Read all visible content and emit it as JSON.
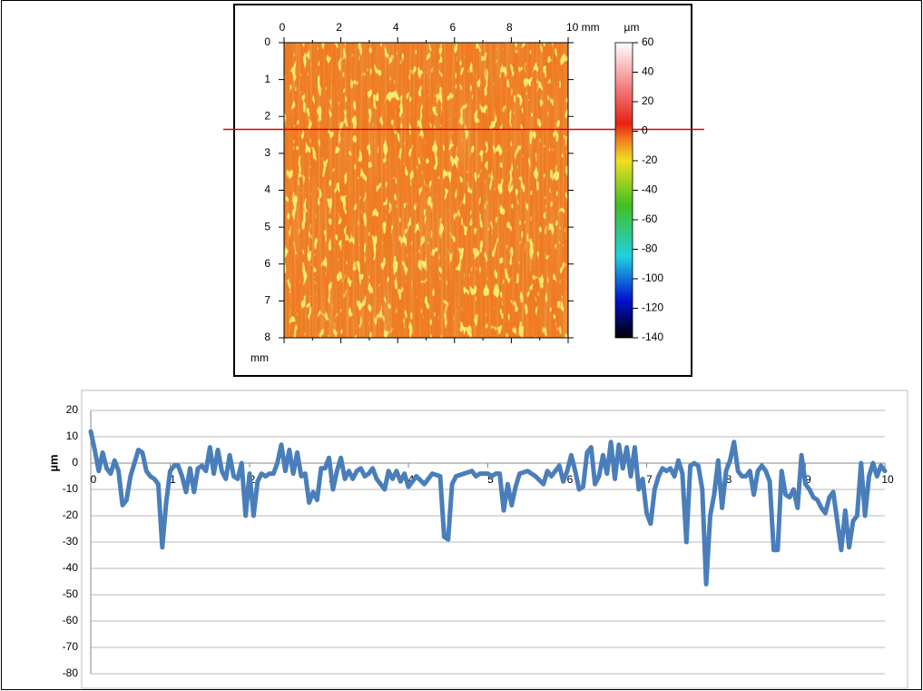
{
  "chart_data": [
    {
      "type": "heatmap",
      "xlim": [
        0,
        10
      ],
      "xticks": [
        0,
        2,
        4,
        6,
        8,
        {
          "value": 10,
          "label": "10 mm"
        }
      ],
      "ylim": [
        0,
        8
      ],
      "yticks": [
        0,
        1,
        2,
        3,
        4,
        5,
        6,
        7,
        8
      ],
      "y_label": "mm",
      "marker_y": 2.35,
      "marker_color": "#e00000",
      "colorbar": {
        "label": "µm",
        "lim": [
          -140,
          60
        ],
        "ticks": [
          60,
          40,
          20,
          0,
          -20,
          -40,
          -60,
          -80,
          -100,
          -120,
          -140
        ],
        "colorscale": [
          [
            60,
            "#ffffff"
          ],
          [
            30,
            "#f28080"
          ],
          [
            5,
            "#e82010"
          ],
          [
            -5,
            "#f07820"
          ],
          [
            -20,
            "#f0e020"
          ],
          [
            -50,
            "#40c020"
          ],
          [
            -85,
            "#20d0e0"
          ],
          [
            -115,
            "#0010d0"
          ],
          [
            -140,
            "#000000"
          ]
        ]
      }
    },
    {
      "type": "line",
      "y_label": "µm",
      "color": "#4a7ebb",
      "grid": true,
      "xlim": [
        0,
        10
      ],
      "xticks": [
        0,
        1,
        2,
        3,
        4,
        5,
        6,
        7,
        8,
        9,
        10
      ],
      "ylim": [
        -80,
        20
      ],
      "yticks": [
        20,
        10,
        0,
        -10,
        -20,
        -30,
        -40,
        -50,
        -60,
        -70,
        -80
      ],
      "x": [
        0,
        0.05,
        0.1,
        0.15,
        0.2,
        0.25,
        0.3,
        0.35,
        0.4,
        0.45,
        0.5,
        0.55,
        0.6,
        0.65,
        0.7,
        0.75,
        0.8,
        0.85,
        0.9,
        0.95,
        1.0,
        1.05,
        1.1,
        1.15,
        1.2,
        1.25,
        1.3,
        1.35,
        1.4,
        1.45,
        1.5,
        1.55,
        1.6,
        1.65,
        1.7,
        1.75,
        1.8,
        1.85,
        1.9,
        1.95,
        2.0,
        2.05,
        2.1,
        2.15,
        2.2,
        2.25,
        2.3,
        2.35,
        2.4,
        2.45,
        2.5,
        2.55,
        2.6,
        2.65,
        2.7,
        2.75,
        2.8,
        2.85,
        2.9,
        2.95,
        3.0,
        3.05,
        3.1,
        3.15,
        3.2,
        3.25,
        3.3,
        3.35,
        3.4,
        3.45,
        3.5,
        3.55,
        3.6,
        3.7,
        3.75,
        3.8,
        3.85,
        3.9,
        3.95,
        4.0,
        4.1,
        4.2,
        4.3,
        4.4,
        4.45,
        4.5,
        4.55,
        4.6,
        4.7,
        4.8,
        4.85,
        4.9,
        5.0,
        5.05,
        5.1,
        5.15,
        5.2,
        5.25,
        5.3,
        5.35,
        5.4,
        5.5,
        5.6,
        5.7,
        5.75,
        5.8,
        5.85,
        5.9,
        5.95,
        6.0,
        6.05,
        6.1,
        6.15,
        6.2,
        6.25,
        6.3,
        6.35,
        6.4,
        6.45,
        6.5,
        6.55,
        6.6,
        6.65,
        6.7,
        6.75,
        6.8,
        6.85,
        6.9,
        6.95,
        7.0,
        7.05,
        7.1,
        7.15,
        7.2,
        7.25,
        7.3,
        7.35,
        7.4,
        7.45,
        7.5,
        7.55,
        7.6,
        7.65,
        7.7,
        7.75,
        7.8,
        7.85,
        7.9,
        7.95,
        8.0,
        8.05,
        8.1,
        8.15,
        8.2,
        8.25,
        8.3,
        8.35,
        8.4,
        8.45,
        8.5,
        8.55,
        8.6,
        8.65,
        8.7,
        8.75,
        8.8,
        8.85,
        8.9,
        8.95,
        9.0,
        9.05,
        9.1,
        9.15,
        9.2,
        9.25,
        9.3,
        9.35,
        9.45,
        9.5,
        9.55,
        9.6,
        9.65,
        9.7,
        9.75,
        9.8,
        9.85,
        9.9,
        9.95,
        10.0
      ],
      "values": [
        12,
        5,
        -3,
        4,
        -2,
        -4,
        1,
        -3,
        -16,
        -14,
        -5,
        0,
        5,
        4,
        -3,
        -5,
        -6,
        -8,
        -32,
        -15,
        -3,
        -1,
        -1,
        -5,
        -11,
        -2,
        -11,
        -2,
        -1,
        -3,
        6,
        -4,
        5,
        -3,
        -6,
        3,
        -5,
        -6,
        0,
        -20,
        -4,
        -20,
        -7,
        -4,
        -5,
        -4,
        -4,
        0,
        7,
        -3,
        5,
        -4,
        4,
        -5,
        -4,
        -15,
        -11,
        -14,
        -2,
        -2,
        2,
        -10,
        -3,
        2,
        -6,
        -3,
        -6,
        -3,
        -2,
        -5,
        -4,
        -2,
        -6,
        -10,
        -3,
        -6,
        -3,
        -7,
        -4,
        -9,
        -5,
        -8,
        -4,
        -5,
        -28,
        -29,
        -8,
        -5,
        -4,
        -3,
        -5,
        -4,
        -4,
        -5,
        -4,
        -4,
        -18,
        -8,
        -16,
        -9,
        -4,
        -3,
        -5,
        -8,
        -3,
        -5,
        -3,
        -1,
        -7,
        -3,
        3,
        -3,
        -10,
        -9,
        4,
        6,
        -8,
        -5,
        3,
        -4,
        8,
        -6,
        7,
        -2,
        6,
        -5,
        6,
        -10,
        -6,
        -19,
        -23,
        -10,
        -5,
        -2,
        -3,
        -2,
        -5,
        1,
        -4,
        -30,
        -1,
        0,
        -1,
        -10,
        -46,
        -20,
        -12,
        1,
        -17,
        -3,
        1,
        8,
        -3,
        -5,
        -5,
        -3,
        -12,
        -3,
        -1,
        -3,
        -7,
        -33,
        -33,
        -3,
        -12,
        -13,
        -10,
        -17,
        3,
        -8,
        -10,
        -13,
        -14,
        -17,
        -19,
        -13,
        -11,
        -33,
        -18,
        -32,
        -22,
        -20,
        0,
        -20,
        -5,
        0,
        -5,
        -1,
        -3
      ]
    }
  ]
}
